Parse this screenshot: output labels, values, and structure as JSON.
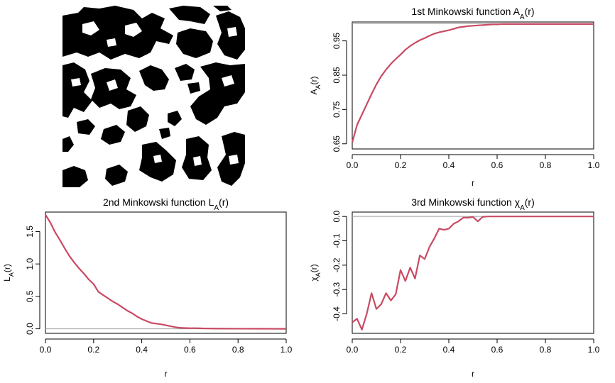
{
  "colors": {
    "curve": "#c94a63",
    "ref_line": "#a0a0a0",
    "image_black": "#000000",
    "image_white": "#ffffff"
  },
  "image_panel": {
    "description": "binary black/white random set image"
  },
  "chart_data": [
    {
      "type": "line",
      "title_main": "1st Minkowski function A",
      "title_sub": "A",
      "title_tail": "(r)",
      "xlabel": "r",
      "ylabel_main": "A",
      "ylabel_sub": "A",
      "ylabel_tail": "(r)",
      "xlim": [
        0,
        1
      ],
      "ylim": [
        0.635,
        1.005
      ],
      "xticks": [
        "0.0",
        "0.2",
        "0.4",
        "0.6",
        "0.8",
        "1.0"
      ],
      "xtick_values": [
        0,
        0.2,
        0.4,
        0.6,
        0.8,
        1.0
      ],
      "yticks": [
        "0.65",
        "0.75",
        "0.85",
        "0.95"
      ],
      "ytick_values": [
        0.65,
        0.75,
        0.85,
        0.95
      ],
      "ref_line": 1.0,
      "x": [
        0,
        0.02,
        0.04,
        0.06,
        0.08,
        0.1,
        0.12,
        0.14,
        0.16,
        0.18,
        0.2,
        0.22,
        0.24,
        0.26,
        0.28,
        0.3,
        0.32,
        0.34,
        0.36,
        0.38,
        0.4,
        0.42,
        0.44,
        0.46,
        0.48,
        0.5,
        0.52,
        0.54,
        0.56,
        0.58,
        0.6,
        0.62,
        0.64,
        0.66,
        0.68,
        0.7,
        0.8,
        0.9,
        1.0
      ],
      "y": [
        0.654,
        0.705,
        0.735,
        0.765,
        0.795,
        0.823,
        0.847,
        0.866,
        0.883,
        0.897,
        0.91,
        0.924,
        0.935,
        0.944,
        0.952,
        0.958,
        0.965,
        0.971,
        0.975,
        0.978,
        0.981,
        0.985,
        0.989,
        0.991,
        0.993,
        0.994,
        0.995,
        0.996,
        0.997,
        0.998,
        0.998,
        0.999,
        0.999,
        0.999,
        0.999,
        0.999,
        0.999,
        0.999,
        0.999
      ]
    },
    {
      "type": "line",
      "title_main": "2nd Minkowski function L",
      "title_sub": "A",
      "title_tail": "(r)",
      "xlabel": "r",
      "ylabel_main": "L",
      "ylabel_sub": "A",
      "ylabel_tail": "(r)",
      "xlim": [
        0,
        1
      ],
      "ylim": [
        -0.07,
        1.8
      ],
      "xticks": [
        "0.0",
        "0.2",
        "0.4",
        "0.6",
        "0.8",
        "1.0"
      ],
      "xtick_values": [
        0,
        0.2,
        0.4,
        0.6,
        0.8,
        1.0
      ],
      "yticks": [
        "0.0",
        "0.5",
        "1.0",
        "1.5"
      ],
      "ytick_values": [
        0,
        0.5,
        1.0,
        1.5
      ],
      "ref_line": 0.0,
      "x": [
        0,
        0.02,
        0.04,
        0.06,
        0.08,
        0.1,
        0.12,
        0.14,
        0.16,
        0.18,
        0.2,
        0.22,
        0.24,
        0.26,
        0.28,
        0.3,
        0.32,
        0.34,
        0.36,
        0.38,
        0.4,
        0.42,
        0.44,
        0.46,
        0.48,
        0.5,
        0.52,
        0.54,
        0.56,
        0.58,
        0.6,
        0.62,
        0.64,
        0.66,
        0.7,
        0.8,
        0.9,
        1.0
      ],
      "y": [
        1.76,
        1.64,
        1.49,
        1.37,
        1.24,
        1.12,
        1.02,
        0.93,
        0.85,
        0.76,
        0.69,
        0.57,
        0.52,
        0.47,
        0.42,
        0.38,
        0.33,
        0.28,
        0.24,
        0.19,
        0.15,
        0.12,
        0.09,
        0.08,
        0.07,
        0.055,
        0.04,
        0.025,
        0.015,
        0.012,
        0.01,
        0.01,
        0.008,
        0.006,
        0.004,
        0.002,
        0.001,
        0.0
      ]
    },
    {
      "type": "line",
      "title_main": "3rd Minkowski function χ",
      "title_sub": "A",
      "title_tail": "(r)",
      "xlabel": "r",
      "ylabel_main": "χ",
      "ylabel_sub": "A",
      "ylabel_tail": "(r)",
      "xlim": [
        0,
        1
      ],
      "ylim": [
        -0.48,
        0.018
      ],
      "xticks": [
        "0.0",
        "0.2",
        "0.4",
        "0.6",
        "0.8",
        "1.0"
      ],
      "xtick_values": [
        0,
        0.2,
        0.4,
        0.6,
        0.8,
        1.0
      ],
      "yticks": [
        "-0.4",
        "-0.3",
        "-0.2",
        "-0.1",
        "0.0"
      ],
      "ytick_values": [
        -0.4,
        -0.3,
        -0.2,
        -0.1,
        0.0
      ],
      "ref_line": 0.0,
      "x": [
        0,
        0.02,
        0.04,
        0.06,
        0.08,
        0.1,
        0.12,
        0.14,
        0.16,
        0.18,
        0.2,
        0.22,
        0.24,
        0.26,
        0.28,
        0.3,
        0.32,
        0.34,
        0.36,
        0.38,
        0.4,
        0.42,
        0.44,
        0.46,
        0.48,
        0.5,
        0.52,
        0.54,
        0.56,
        0.58,
        0.6,
        0.62,
        0.64,
        0.66,
        0.68,
        0.7,
        0.8,
        0.9,
        1.0
      ],
      "y": [
        -0.435,
        -0.42,
        -0.465,
        -0.4,
        -0.315,
        -0.38,
        -0.36,
        -0.315,
        -0.345,
        -0.32,
        -0.22,
        -0.265,
        -0.21,
        -0.255,
        -0.16,
        -0.175,
        -0.125,
        -0.09,
        -0.05,
        -0.055,
        -0.05,
        -0.03,
        -0.02,
        -0.005,
        -0.005,
        -0.002,
        -0.02,
        -0.002,
        0.0,
        0.0,
        0.0,
        0.0,
        0.0,
        0.0,
        0.0,
        0.0,
        0.0,
        0.0,
        0.0
      ]
    }
  ]
}
